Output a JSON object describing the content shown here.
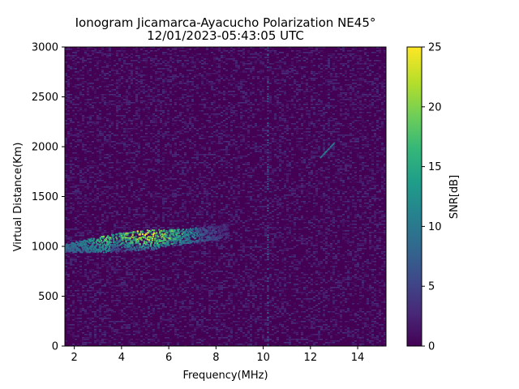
{
  "chart_data": {
    "type": "heatmap",
    "title": "Ionogram Jicamarca-Ayacucho Polarization NE45°",
    "subtitle": "12/01/2023-05:43:05 UTC",
    "xlabel": "Frequency(MHz)",
    "ylabel": "Virtual Distance(Km)",
    "xlim": [
      1.6,
      15.2
    ],
    "ylim": [
      0,
      3000
    ],
    "x_ticks": [
      2,
      4,
      6,
      8,
      10,
      12,
      14
    ],
    "x_tick_labels": [
      "2",
      "4",
      "6",
      "8",
      "10",
      "12",
      "14"
    ],
    "y_ticks": [
      0,
      500,
      1000,
      1500,
      2000,
      2500,
      3000
    ],
    "y_tick_labels": [
      "0",
      "500",
      "1000",
      "1500",
      "2000",
      "2500",
      "3000"
    ],
    "colorbar": {
      "label": "SNR[dB]",
      "range": [
        0,
        25
      ],
      "ticks": [
        0,
        5,
        10,
        15,
        20,
        25
      ],
      "tick_labels": [
        "0",
        "5",
        "10",
        "15",
        "20",
        "25"
      ],
      "colormap": "viridis",
      "colors": [
        "#440154",
        "#482878",
        "#3e4989",
        "#31688e",
        "#26828e",
        "#1f9e89",
        "#35b779",
        "#6ece58",
        "#b5de2b",
        "#fde725"
      ]
    },
    "grid": false,
    "background_snr_db": 0.5,
    "features": [
      {
        "name": "F-layer echo trace",
        "freq_mhz": [
          1.6,
          8.5
        ],
        "virtual_distance_km": [
          950,
          1200
        ],
        "peak_snr_db": 23,
        "peak_freq_mhz": 5.0,
        "peak_distance_km": 1120
      },
      {
        "name": "vertical interference line",
        "freq_mhz": 10.2,
        "virtual_distance_km": [
          0,
          3000
        ],
        "snr_db": 4
      },
      {
        "name": "diagonal streak",
        "freq_mhz": [
          12.4,
          13.0
        ],
        "virtual_distance_km": [
          1900,
          2050
        ],
        "snr_db": 8
      }
    ]
  }
}
